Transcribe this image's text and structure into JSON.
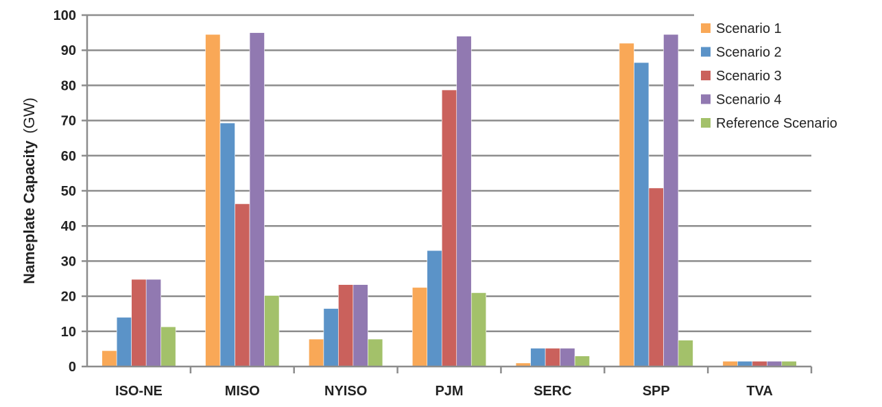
{
  "chart_data": {
    "type": "bar",
    "title": "",
    "xlabel": "",
    "ylabel": "Nameplate Capacity",
    "ylabel_unit": "(GW)",
    "ylim": [
      0,
      100
    ],
    "yticks": [
      0,
      10,
      20,
      30,
      40,
      50,
      60,
      70,
      80,
      90,
      100
    ],
    "grid": true,
    "legend_position": "top-right",
    "categories": [
      "ISO-NE",
      "MISO",
      "NYISO",
      "PJM",
      "SERC",
      "SPP",
      "TVA"
    ],
    "series": [
      {
        "name": "Scenario 1",
        "color": "#F9A857",
        "values": [
          4.5,
          94.5,
          7.8,
          22.5,
          1.0,
          92,
          1.5
        ]
      },
      {
        "name": "Scenario 2",
        "color": "#5B93C8",
        "values": [
          14,
          69.3,
          16.5,
          33,
          5.2,
          86.5,
          1.5
        ]
      },
      {
        "name": "Scenario 3",
        "color": "#CA615C",
        "values": [
          24.8,
          46.3,
          23.3,
          78.7,
          5.2,
          50.8,
          1.5
        ]
      },
      {
        "name": "Scenario 4",
        "color": "#9179B1",
        "values": [
          24.8,
          95,
          23.3,
          94,
          5.2,
          94.5,
          1.5
        ]
      },
      {
        "name": "Reference Scenario",
        "color": "#A3C16A",
        "values": [
          11.3,
          20.2,
          7.8,
          21,
          3.0,
          7.5,
          1.5
        ]
      }
    ]
  }
}
